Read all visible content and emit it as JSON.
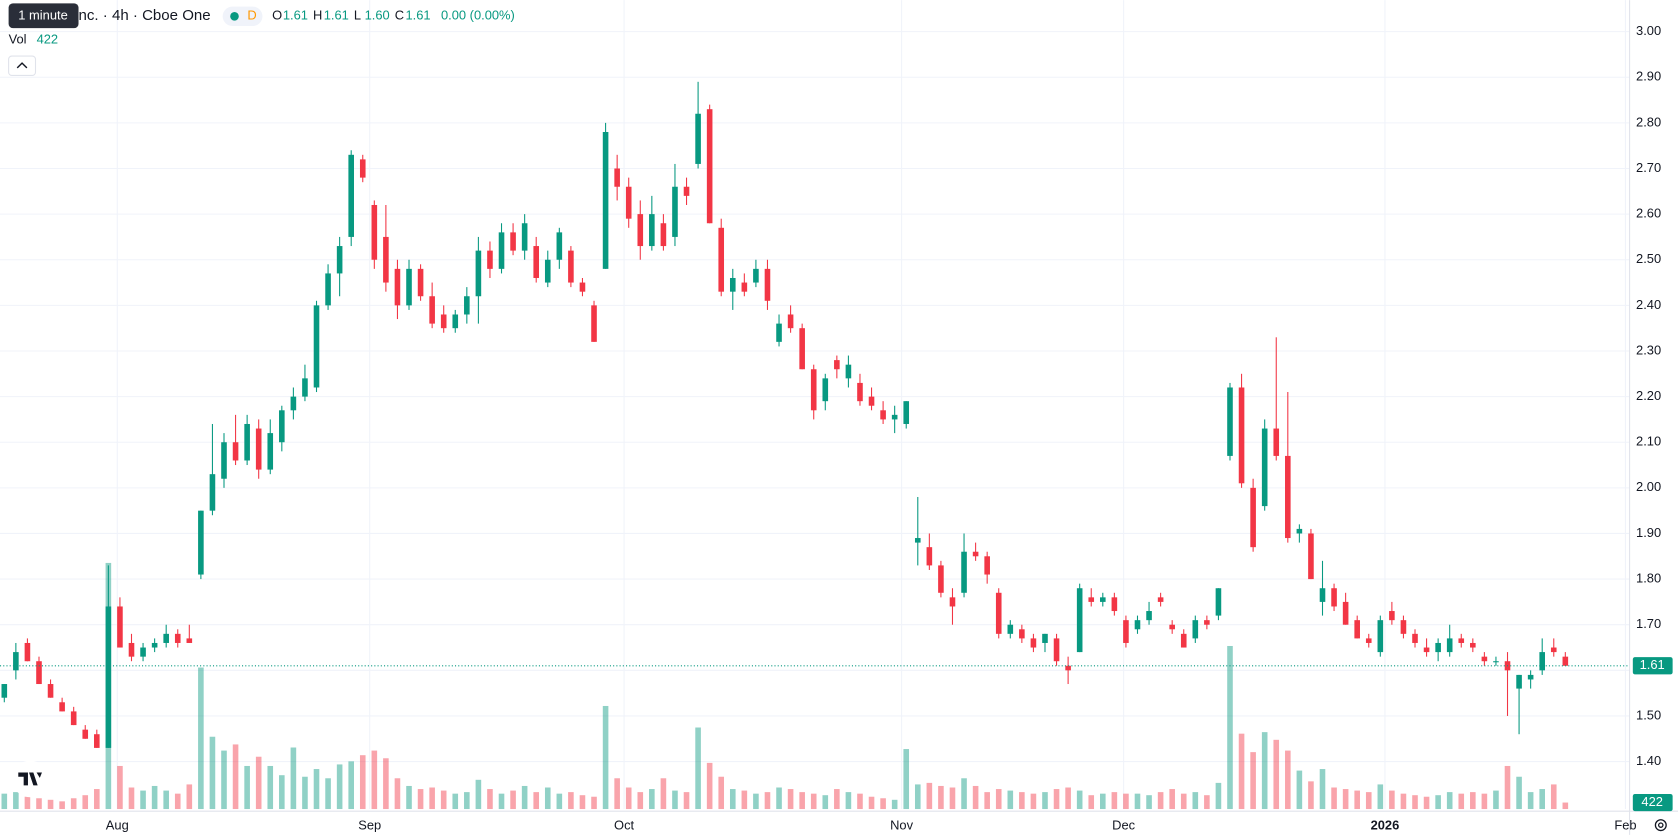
{
  "header": {
    "tooltip": "1 minute",
    "title": "nc. · 4h · Cboe One",
    "badge": "D",
    "ohlc": [
      {
        "key": "O",
        "value": "1.61"
      },
      {
        "key": "H",
        "value": "1.61"
      },
      {
        "key": "L",
        "value": "1.60"
      },
      {
        "key": "C",
        "value": "1.61"
      }
    ],
    "change": "0.00 (0.00%)",
    "volume_label": "Vol"
  },
  "chart_data": {
    "type": "candlestick",
    "up_color": "#089981",
    "down_color": "#f23645",
    "grid": true,
    "ylim": [
      1.296,
      3.069
    ],
    "yticks": [
      {
        "value": 1.4,
        "label": "1.40"
      },
      {
        "value": 1.5,
        "label": "1.50"
      },
      {
        "value": 1.6,
        "label": "1.60"
      },
      {
        "value": 1.7,
        "label": "1.70"
      },
      {
        "value": 1.8,
        "label": "1.80"
      },
      {
        "value": 1.9,
        "label": "1.90"
      },
      {
        "value": 2.0,
        "label": "2.00"
      },
      {
        "value": 2.1,
        "label": "2.10"
      },
      {
        "value": 2.2,
        "label": "2.20"
      },
      {
        "value": 2.3,
        "label": "2.30"
      },
      {
        "value": 2.4,
        "label": "2.40"
      },
      {
        "value": 2.5,
        "label": "2.50"
      },
      {
        "value": 2.6,
        "label": "2.60"
      },
      {
        "value": 2.7,
        "label": "2.70"
      },
      {
        "value": 2.8,
        "label": "2.80"
      },
      {
        "value": 2.9,
        "label": "2.90"
      },
      {
        "value": 3.0,
        "label": "3.00"
      }
    ],
    "volume_ylim": [
      0,
      20000
    ],
    "x_labels": [
      {
        "at": 9.77,
        "label": "Aug"
      },
      {
        "at": 31.6,
        "label": "Sep"
      },
      {
        "at": 53.6,
        "label": "Oct"
      },
      {
        "at": 77.6,
        "label": "Nov"
      },
      {
        "at": 96.8,
        "label": "Dec"
      },
      {
        "at": 119.4,
        "label": "2026"
      },
      {
        "at": 140.2,
        "label": "Feb"
      }
    ],
    "candles": [
      [
        1.54,
        1.57,
        1.53,
        1.57
      ],
      [
        1.6,
        1.66,
        1.58,
        1.64
      ],
      [
        1.66,
        1.67,
        1.62,
        1.62
      ],
      [
        1.62,
        1.63,
        1.57,
        1.57
      ],
      [
        1.57,
        1.58,
        1.54,
        1.54
      ],
      [
        1.53,
        1.54,
        1.51,
        1.51
      ],
      [
        1.51,
        1.52,
        1.48,
        1.48
      ],
      [
        1.47,
        1.48,
        1.45,
        1.45
      ],
      [
        1.46,
        1.47,
        1.43,
        1.43
      ],
      [
        1.43,
        1.83,
        1.43,
        1.74
      ],
      [
        1.74,
        1.76,
        1.65,
        1.65
      ],
      [
        1.66,
        1.68,
        1.62,
        1.63
      ],
      [
        1.63,
        1.66,
        1.62,
        1.65
      ],
      [
        1.65,
        1.67,
        1.64,
        1.66
      ],
      [
        1.66,
        1.7,
        1.65,
        1.68
      ],
      [
        1.68,
        1.69,
        1.65,
        1.66
      ],
      [
        1.67,
        1.7,
        1.66,
        1.66
      ],
      [
        1.81,
        1.95,
        1.8,
        1.95
      ],
      [
        1.95,
        2.14,
        1.94,
        2.03
      ],
      [
        2.02,
        2.12,
        2.0,
        2.1
      ],
      [
        2.1,
        2.16,
        2.05,
        2.06
      ],
      [
        2.06,
        2.16,
        2.05,
        2.14
      ],
      [
        2.13,
        2.15,
        2.02,
        2.04
      ],
      [
        2.04,
        2.15,
        2.03,
        2.12
      ],
      [
        2.1,
        2.18,
        2.08,
        2.17
      ],
      [
        2.17,
        2.22,
        2.15,
        2.2
      ],
      [
        2.2,
        2.27,
        2.19,
        2.24
      ],
      [
        2.22,
        2.41,
        2.21,
        2.4
      ],
      [
        2.4,
        2.49,
        2.39,
        2.47
      ],
      [
        2.47,
        2.55,
        2.42,
        2.53
      ],
      [
        2.55,
        2.74,
        2.53,
        2.73
      ],
      [
        2.72,
        2.73,
        2.67,
        2.68
      ],
      [
        2.62,
        2.63,
        2.48,
        2.5
      ],
      [
        2.55,
        2.62,
        2.43,
        2.45
      ],
      [
        2.48,
        2.5,
        2.37,
        2.4
      ],
      [
        2.4,
        2.5,
        2.39,
        2.48
      ],
      [
        2.48,
        2.49,
        2.41,
        2.42
      ],
      [
        2.42,
        2.45,
        2.35,
        2.36
      ],
      [
        2.38,
        2.4,
        2.34,
        2.35
      ],
      [
        2.35,
        2.39,
        2.34,
        2.38
      ],
      [
        2.38,
        2.44,
        2.36,
        2.42
      ],
      [
        2.42,
        2.55,
        2.36,
        2.52
      ],
      [
        2.52,
        2.54,
        2.46,
        2.48
      ],
      [
        2.48,
        2.58,
        2.47,
        2.56
      ],
      [
        2.56,
        2.58,
        2.51,
        2.52
      ],
      [
        2.52,
        2.6,
        2.5,
        2.58
      ],
      [
        2.53,
        2.55,
        2.45,
        2.46
      ],
      [
        2.45,
        2.52,
        2.44,
        2.5
      ],
      [
        2.5,
        2.57,
        2.48,
        2.56
      ],
      [
        2.52,
        2.53,
        2.44,
        2.45
      ],
      [
        2.45,
        2.46,
        2.42,
        2.43
      ],
      [
        2.4,
        2.41,
        2.32,
        2.32
      ],
      [
        2.48,
        2.8,
        2.48,
        2.78
      ],
      [
        2.7,
        2.73,
        2.63,
        2.66
      ],
      [
        2.66,
        2.68,
        2.57,
        2.59
      ],
      [
        2.6,
        2.63,
        2.5,
        2.53
      ],
      [
        2.53,
        2.64,
        2.52,
        2.6
      ],
      [
        2.58,
        2.6,
        2.52,
        2.53
      ],
      [
        2.55,
        2.71,
        2.53,
        2.66
      ],
      [
        2.66,
        2.68,
        2.62,
        2.64
      ],
      [
        2.71,
        2.89,
        2.7,
        2.82
      ],
      [
        2.83,
        2.84,
        2.58,
        2.58
      ],
      [
        2.57,
        2.59,
        2.42,
        2.43
      ],
      [
        2.43,
        2.48,
        2.39,
        2.46
      ],
      [
        2.45,
        2.47,
        2.42,
        2.43
      ],
      [
        2.45,
        2.5,
        2.44,
        2.48
      ],
      [
        2.48,
        2.5,
        2.39,
        2.41
      ],
      [
        2.32,
        2.38,
        2.31,
        2.36
      ],
      [
        2.38,
        2.4,
        2.34,
        2.35
      ],
      [
        2.35,
        2.36,
        2.26,
        2.26
      ],
      [
        2.26,
        2.27,
        2.15,
        2.17
      ],
      [
        2.19,
        2.25,
        2.17,
        2.24
      ],
      [
        2.28,
        2.29,
        2.24,
        2.26
      ],
      [
        2.24,
        2.29,
        2.22,
        2.27
      ],
      [
        2.23,
        2.25,
        2.18,
        2.19
      ],
      [
        2.2,
        2.22,
        2.17,
        2.18
      ],
      [
        2.17,
        2.19,
        2.14,
        2.15
      ],
      [
        2.15,
        2.18,
        2.12,
        2.16
      ],
      [
        2.14,
        2.19,
        2.13,
        2.19
      ],
      [
        1.88,
        1.98,
        1.83,
        1.89
      ],
      [
        1.87,
        1.9,
        1.82,
        1.83
      ],
      [
        1.83,
        1.84,
        1.76,
        1.77
      ],
      [
        1.76,
        1.78,
        1.7,
        1.74
      ],
      [
        1.77,
        1.9,
        1.76,
        1.86
      ],
      [
        1.86,
        1.88,
        1.84,
        1.85
      ],
      [
        1.85,
        1.86,
        1.79,
        1.81
      ],
      [
        1.77,
        1.78,
        1.67,
        1.68
      ],
      [
        1.68,
        1.71,
        1.67,
        1.7
      ],
      [
        1.69,
        1.7,
        1.66,
        1.67
      ],
      [
        1.67,
        1.68,
        1.64,
        1.65
      ],
      [
        1.66,
        1.68,
        1.64,
        1.68
      ],
      [
        1.67,
        1.68,
        1.61,
        1.62
      ],
      [
        1.61,
        1.63,
        1.57,
        1.6
      ],
      [
        1.64,
        1.79,
        1.64,
        1.78
      ],
      [
        1.76,
        1.78,
        1.74,
        1.75
      ],
      [
        1.75,
        1.77,
        1.74,
        1.76
      ],
      [
        1.76,
        1.77,
        1.72,
        1.73
      ],
      [
        1.71,
        1.72,
        1.65,
        1.66
      ],
      [
        1.69,
        1.72,
        1.68,
        1.71
      ],
      [
        1.71,
        1.75,
        1.7,
        1.73
      ],
      [
        1.76,
        1.77,
        1.74,
        1.75
      ],
      [
        1.7,
        1.71,
        1.68,
        1.69
      ],
      [
        1.68,
        1.69,
        1.65,
        1.65
      ],
      [
        1.67,
        1.72,
        1.66,
        1.71
      ],
      [
        1.71,
        1.72,
        1.69,
        1.7
      ],
      [
        1.72,
        1.78,
        1.71,
        1.78
      ],
      [
        2.07,
        2.23,
        2.06,
        2.22
      ],
      [
        2.22,
        2.25,
        2.0,
        2.01
      ],
      [
        2.0,
        2.02,
        1.86,
        1.87
      ],
      [
        1.96,
        2.15,
        1.95,
        2.13
      ],
      [
        2.13,
        2.33,
        2.06,
        2.07
      ],
      [
        2.07,
        2.21,
        1.88,
        1.89
      ],
      [
        1.9,
        1.92,
        1.88,
        1.91
      ],
      [
        1.9,
        1.91,
        1.8,
        1.8
      ],
      [
        1.75,
        1.84,
        1.72,
        1.78
      ],
      [
        1.78,
        1.79,
        1.73,
        1.74
      ],
      [
        1.75,
        1.77,
        1.7,
        1.7
      ],
      [
        1.71,
        1.72,
        1.67,
        1.67
      ],
      [
        1.67,
        1.68,
        1.65,
        1.66
      ],
      [
        1.64,
        1.72,
        1.63,
        1.71
      ],
      [
        1.73,
        1.75,
        1.7,
        1.71
      ],
      [
        1.71,
        1.72,
        1.67,
        1.68
      ],
      [
        1.68,
        1.69,
        1.65,
        1.66
      ],
      [
        1.65,
        1.67,
        1.63,
        1.64
      ],
      [
        1.64,
        1.67,
        1.62,
        1.66
      ],
      [
        1.64,
        1.7,
        1.63,
        1.67
      ],
      [
        1.67,
        1.68,
        1.65,
        1.66
      ],
      [
        1.66,
        1.67,
        1.64,
        1.65
      ],
      [
        1.63,
        1.64,
        1.61,
        1.62
      ],
      [
        1.62,
        1.63,
        1.61,
        1.62
      ],
      [
        1.62,
        1.64,
        1.5,
        1.6
      ],
      [
        1.56,
        1.59,
        1.46,
        1.59
      ],
      [
        1.58,
        1.6,
        1.56,
        1.59
      ],
      [
        1.6,
        1.67,
        1.59,
        1.64
      ],
      [
        1.65,
        1.67,
        1.63,
        1.64
      ],
      [
        1.63,
        1.64,
        1.61,
        1.61
      ]
    ],
    "volumes": [
      1000,
      1100,
      800,
      700,
      600,
      500,
      700,
      900,
      1300,
      16000,
      2800,
      1400,
      1200,
      1500,
      1200,
      1000,
      1600,
      9200,
      4700,
      3800,
      4200,
      2800,
      3400,
      2800,
      2200,
      4000,
      2100,
      2600,
      2000,
      2900,
      3100,
      3500,
      3800,
      3300,
      2000,
      1500,
      1300,
      1400,
      1200,
      1000,
      1100,
      1900,
      1300,
      1000,
      1200,
      1500,
      1100,
      1400,
      1000,
      1100,
      900,
      800,
      6700,
      2000,
      1400,
      1100,
      1300,
      2000,
      1200,
      1100,
      5300,
      3000,
      2100,
      1300,
      1200,
      1000,
      1100,
      1400,
      1300,
      1100,
      1000,
      900,
      1300,
      1100,
      1000,
      800,
      700,
      600,
      3900,
      1600,
      1700,
      1500,
      1400,
      2000,
      1500,
      1100,
      1300,
      1200,
      1100,
      1000,
      1100,
      1300,
      1400,
      1200,
      900,
      1000,
      1100,
      1000,
      1000,
      900,
      1100,
      1300,
      1000,
      1100,
      900,
      1700,
      10600,
      4900,
      3700,
      5000,
      4500,
      3800,
      2500,
      1800,
      2600,
      1400,
      1300,
      1200,
      1100,
      1600,
      1200,
      1000,
      900,
      800,
      900,
      1100,
      1000,
      1100,
      1000,
      1200,
      2800,
      2100,
      1100,
      1300,
      1600,
      422
    ]
  }
}
